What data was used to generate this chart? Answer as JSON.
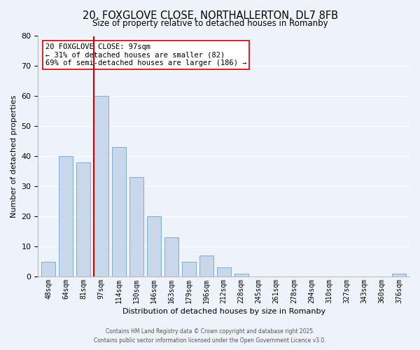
{
  "title": "20, FOXGLOVE CLOSE, NORTHALLERTON, DL7 8FB",
  "subtitle": "Size of property relative to detached houses in Romanby",
  "xlabel": "Distribution of detached houses by size in Romanby",
  "ylabel": "Number of detached properties",
  "bin_labels": [
    "48sqm",
    "64sqm",
    "81sqm",
    "97sqm",
    "114sqm",
    "130sqm",
    "146sqm",
    "163sqm",
    "179sqm",
    "196sqm",
    "212sqm",
    "228sqm",
    "245sqm",
    "261sqm",
    "278sqm",
    "294sqm",
    "310sqm",
    "327sqm",
    "343sqm",
    "360sqm",
    "376sqm"
  ],
  "bar_values": [
    5,
    40,
    38,
    60,
    43,
    33,
    20,
    13,
    5,
    7,
    3,
    1,
    0,
    0,
    0,
    0,
    0,
    0,
    0,
    0,
    1
  ],
  "bar_color": "#c8d8ea",
  "bar_edge_color": "#7aaed0",
  "vline_color": "#cc0000",
  "annotation_text": "20 FOXGLOVE CLOSE: 97sqm\n← 31% of detached houses are smaller (82)\n69% of semi-detached houses are larger (186) →",
  "annotation_box_color": "#ffffff",
  "annotation_box_edge_color": "#cc0000",
  "ylim": [
    0,
    80
  ],
  "yticks": [
    0,
    10,
    20,
    30,
    40,
    50,
    60,
    70,
    80
  ],
  "background_color": "#eef2fb",
  "grid_color": "#ffffff",
  "footer_line1": "Contains HM Land Registry data © Crown copyright and database right 2025.",
  "footer_line2": "Contains public sector information licensed under the Open Government Licence v3.0."
}
